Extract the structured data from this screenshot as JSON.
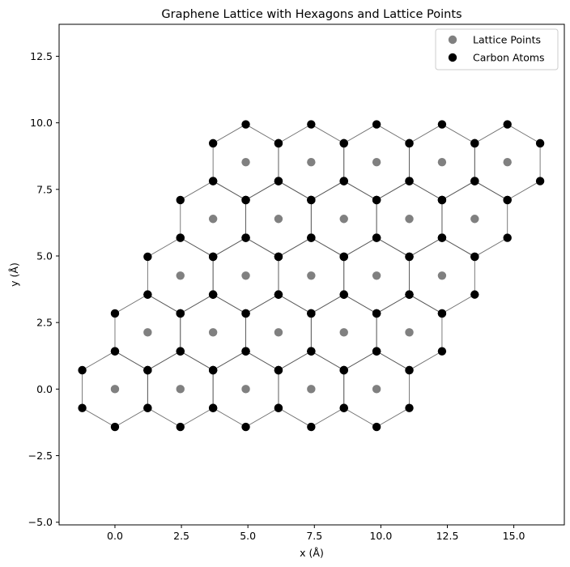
{
  "chart_data": {
    "type": "scatter",
    "title": "Graphene Lattice with Hexagons and Lattice Points",
    "xlabel": "x (Å)",
    "ylabel": "y (Å)",
    "xlim": [
      -2.1,
      16.9
    ],
    "ylim": [
      -5.1,
      13.7
    ],
    "xticks": [
      {
        "value": 0.0,
        "label": "0.0"
      },
      {
        "value": 2.5,
        "label": "2.5"
      },
      {
        "value": 5.0,
        "label": "5.0"
      },
      {
        "value": 7.5,
        "label": "7.5"
      },
      {
        "value": 10.0,
        "label": "10.0"
      },
      {
        "value": 12.5,
        "label": "12.5"
      },
      {
        "value": 15.0,
        "label": "15.0"
      }
    ],
    "yticks": [
      {
        "value": -5.0,
        "label": "−5.0"
      },
      {
        "value": -2.5,
        "label": "−2.5"
      },
      {
        "value": 0.0,
        "label": "0.0"
      },
      {
        "value": 2.5,
        "label": "2.5"
      },
      {
        "value": 5.0,
        "label": "5.0"
      },
      {
        "value": 7.5,
        "label": "7.5"
      },
      {
        "value": 10.0,
        "label": "10.0"
      },
      {
        "value": 12.5,
        "label": "12.5"
      }
    ],
    "lattice": {
      "a1": [
        2.46,
        0.0
      ],
      "a2": [
        1.23,
        2.1304
      ],
      "rows": 5,
      "cols": 5,
      "bond_length": 1.42,
      "hexagon_edge_color": "#555555",
      "note_centers_index_range": "i,j in 0..4"
    },
    "series": [
      {
        "name": "Lattice Points",
        "color": "#808080",
        "marker": "circle"
      },
      {
        "name": "Carbon Atoms",
        "color": "#000000",
        "marker": "circle"
      }
    ],
    "legend": {
      "position": "top-right",
      "entries": [
        "Lattice Points",
        "Carbon Atoms"
      ]
    },
    "grid": false
  }
}
